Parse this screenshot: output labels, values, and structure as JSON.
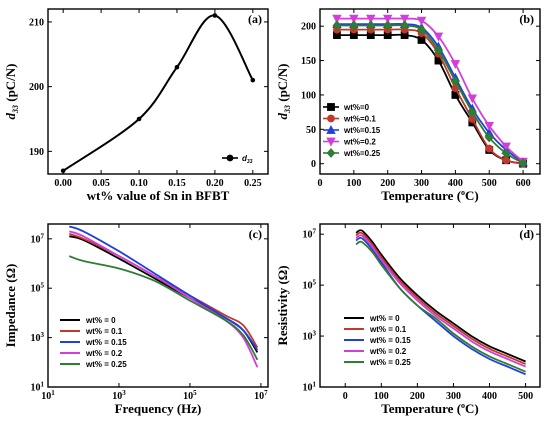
{
  "chart_data": [
    {
      "panel": "(a)",
      "type": "line",
      "xlabel": "wt% value of Sn in BFBT",
      "ylabel_main": "d",
      "ylabel_sub": "33",
      "ylabel_unit": " (pC/N)",
      "xlim": [
        -0.02,
        0.27
      ],
      "ylim": [
        186.5,
        212
      ],
      "xticks": [
        "0.00",
        "0.05",
        "0.10",
        "0.15",
        "0.20",
        "0.25"
      ],
      "xtick_values": [
        0,
        0.05,
        0.1,
        0.15,
        0.2,
        0.25
      ],
      "yticks": [
        "190",
        "200",
        "210"
      ],
      "ytick_values": [
        190,
        200,
        210
      ],
      "series": [
        {
          "name": "d33",
          "legend_main": "d",
          "legend_sub": "33",
          "color": "#000000",
          "x": [
            0,
            0.1,
            0.15,
            0.2,
            0.25
          ],
          "y": [
            187,
            195,
            203,
            211,
            201
          ]
        }
      ],
      "legend": "bottom-right"
    },
    {
      "panel": "(b)",
      "type": "line",
      "xlabel": "Temperature (",
      "xlabel_sup": "o",
      "xlabel_end": "C)",
      "ylabel_main": "d",
      "ylabel_sub": "33",
      "ylabel_unit": " (pC/N)",
      "xlim": [
        0,
        650
      ],
      "ylim": [
        -15,
        225
      ],
      "xticks": [
        "0",
        "100",
        "200",
        "300",
        "400",
        "500",
        "600"
      ],
      "xtick_values": [
        0,
        100,
        200,
        300,
        400,
        500,
        600
      ],
      "yticks": [
        "0",
        "50",
        "100",
        "150",
        "200"
      ],
      "ytick_values": [
        0,
        50,
        100,
        150,
        200
      ],
      "x": [
        50,
        100,
        150,
        200,
        250,
        300,
        350,
        400,
        450,
        500,
        550,
        600
      ],
      "series": [
        {
          "name": "wt%=0",
          "color": "#000000",
          "marker": "square",
          "values": [
            187,
            187,
            187,
            187,
            187,
            180,
            150,
            100,
            60,
            20,
            5,
            0
          ]
        },
        {
          "name": "wt%=0.1",
          "color": "#c0392b",
          "marker": "circle",
          "values": [
            195,
            195,
            195,
            195,
            195,
            190,
            160,
            110,
            65,
            22,
            5,
            0
          ]
        },
        {
          "name": "wt%=0.15",
          "color": "#1f3fe0",
          "marker": "triangle-up",
          "values": [
            203,
            203,
            203,
            203,
            203,
            198,
            170,
            125,
            80,
            45,
            20,
            2
          ]
        },
        {
          "name": "wt%=0.2",
          "color": "#d23fd8",
          "marker": "triangle-down",
          "values": [
            211,
            211,
            211,
            211,
            211,
            208,
            185,
            145,
            95,
            55,
            25,
            3
          ]
        },
        {
          "name": "wt%=0.25",
          "color": "#2e7d32",
          "marker": "diamond",
          "values": [
            201,
            201,
            201,
            201,
            201,
            195,
            165,
            120,
            75,
            38,
            15,
            1
          ]
        }
      ],
      "legend": "bottom-left"
    },
    {
      "panel": "(c)",
      "type": "line",
      "xlabel": "Frequency (Hz)",
      "ylabel": "Impedance (Ω)",
      "x_log": true,
      "y_log": true,
      "xlim_exp": [
        1,
        7.2
      ],
      "ylim_exp": [
        1,
        7.6
      ],
      "xticks": [
        {
          "base": "10",
          "exp": "1"
        },
        {
          "base": "10",
          "exp": "3"
        },
        {
          "base": "10",
          "exp": "5"
        },
        {
          "base": "10",
          "exp": "7"
        }
      ],
      "xtick_exps": [
        1,
        3,
        5,
        7
      ],
      "yticks": [
        {
          "base": "10",
          "exp": "1"
        },
        {
          "base": "10",
          "exp": "3"
        },
        {
          "base": "10",
          "exp": "5"
        },
        {
          "base": "10",
          "exp": "7"
        }
      ],
      "ytick_exps": [
        1,
        3,
        5,
        7
      ],
      "x_exp": [
        1.6,
        2.0,
        3.0,
        4.0,
        5.0,
        6.0,
        6.5,
        6.9
      ],
      "series": [
        {
          "name": "wt% = 0",
          "color": "#000000",
          "y_exp": [
            7.1,
            6.95,
            6.2,
            5.4,
            4.6,
            3.8,
            3.3,
            2.4
          ]
        },
        {
          "name": "wt% = 0.1",
          "color": "#c0392b",
          "y_exp": [
            7.2,
            7.0,
            6.3,
            5.5,
            4.7,
            3.9,
            3.5,
            2.6
          ]
        },
        {
          "name": "wt% = 0.15",
          "color": "#1f3fe0",
          "y_exp": [
            7.5,
            7.3,
            6.5,
            5.6,
            4.7,
            3.8,
            3.3,
            2.5
          ]
        },
        {
          "name": "wt% = 0.2",
          "color": "#d23fd8",
          "y_exp": [
            7.3,
            7.1,
            6.3,
            5.5,
            4.6,
            3.7,
            3.0,
            1.8
          ]
        },
        {
          "name": "wt% = 0.25",
          "color": "#2e7d32",
          "y_exp": [
            6.3,
            6.1,
            5.8,
            5.3,
            4.5,
            3.7,
            3.1,
            2.1
          ]
        }
      ],
      "legend": "bottom-left"
    },
    {
      "panel": "(d)",
      "type": "line",
      "xlabel": "Temperature (",
      "xlabel_sup": "o",
      "xlabel_end": "C)",
      "ylabel": "Resistivity (Ω)",
      "y_log": true,
      "xlim": [
        -70,
        540
      ],
      "ylim_exp": [
        1,
        7.4
      ],
      "xticks": [
        "0",
        "100",
        "200",
        "300",
        "400",
        "500"
      ],
      "xtick_values": [
        0,
        100,
        200,
        300,
        400,
        500
      ],
      "yticks": [
        {
          "base": "10",
          "exp": "1"
        },
        {
          "base": "10",
          "exp": "3"
        },
        {
          "base": "10",
          "exp": "5"
        },
        {
          "base": "10",
          "exp": "7"
        }
      ],
      "ytick_exps": [
        1,
        3,
        5,
        7
      ],
      "x": [
        30,
        40,
        50,
        75,
        100,
        150,
        200,
        250,
        300,
        350,
        400,
        450,
        500
      ],
      "series": [
        {
          "name": "wt% = 0",
          "color": "#000000",
          "y_exp": [
            7.05,
            7.15,
            7.1,
            6.7,
            6.2,
            5.3,
            4.6,
            4.0,
            3.5,
            3.0,
            2.6,
            2.3,
            2.0
          ]
        },
        {
          "name": "wt% = 0.1",
          "color": "#c0392b",
          "y_exp": [
            6.95,
            7.05,
            7.0,
            6.6,
            6.1,
            5.2,
            4.5,
            3.9,
            3.4,
            2.9,
            2.5,
            2.2,
            1.9
          ]
        },
        {
          "name": "wt% = 0.15",
          "color": "#1f3fe0",
          "y_exp": [
            6.75,
            6.85,
            6.8,
            6.4,
            5.9,
            4.9,
            4.2,
            3.6,
            3.0,
            2.5,
            2.1,
            1.8,
            1.5
          ]
        },
        {
          "name": "wt% = 0.2",
          "color": "#d23fd8",
          "y_exp": [
            6.85,
            6.95,
            6.9,
            6.5,
            6.0,
            5.1,
            4.4,
            3.8,
            3.3,
            2.8,
            2.4,
            2.1,
            1.8
          ]
        },
        {
          "name": "wt% = 0.25",
          "color": "#2e7d32",
          "y_exp": [
            6.6,
            6.7,
            6.65,
            6.3,
            5.8,
            4.9,
            4.2,
            3.7,
            3.1,
            2.6,
            2.2,
            1.9,
            1.6
          ]
        }
      ],
      "legend": "bottom-left"
    }
  ]
}
